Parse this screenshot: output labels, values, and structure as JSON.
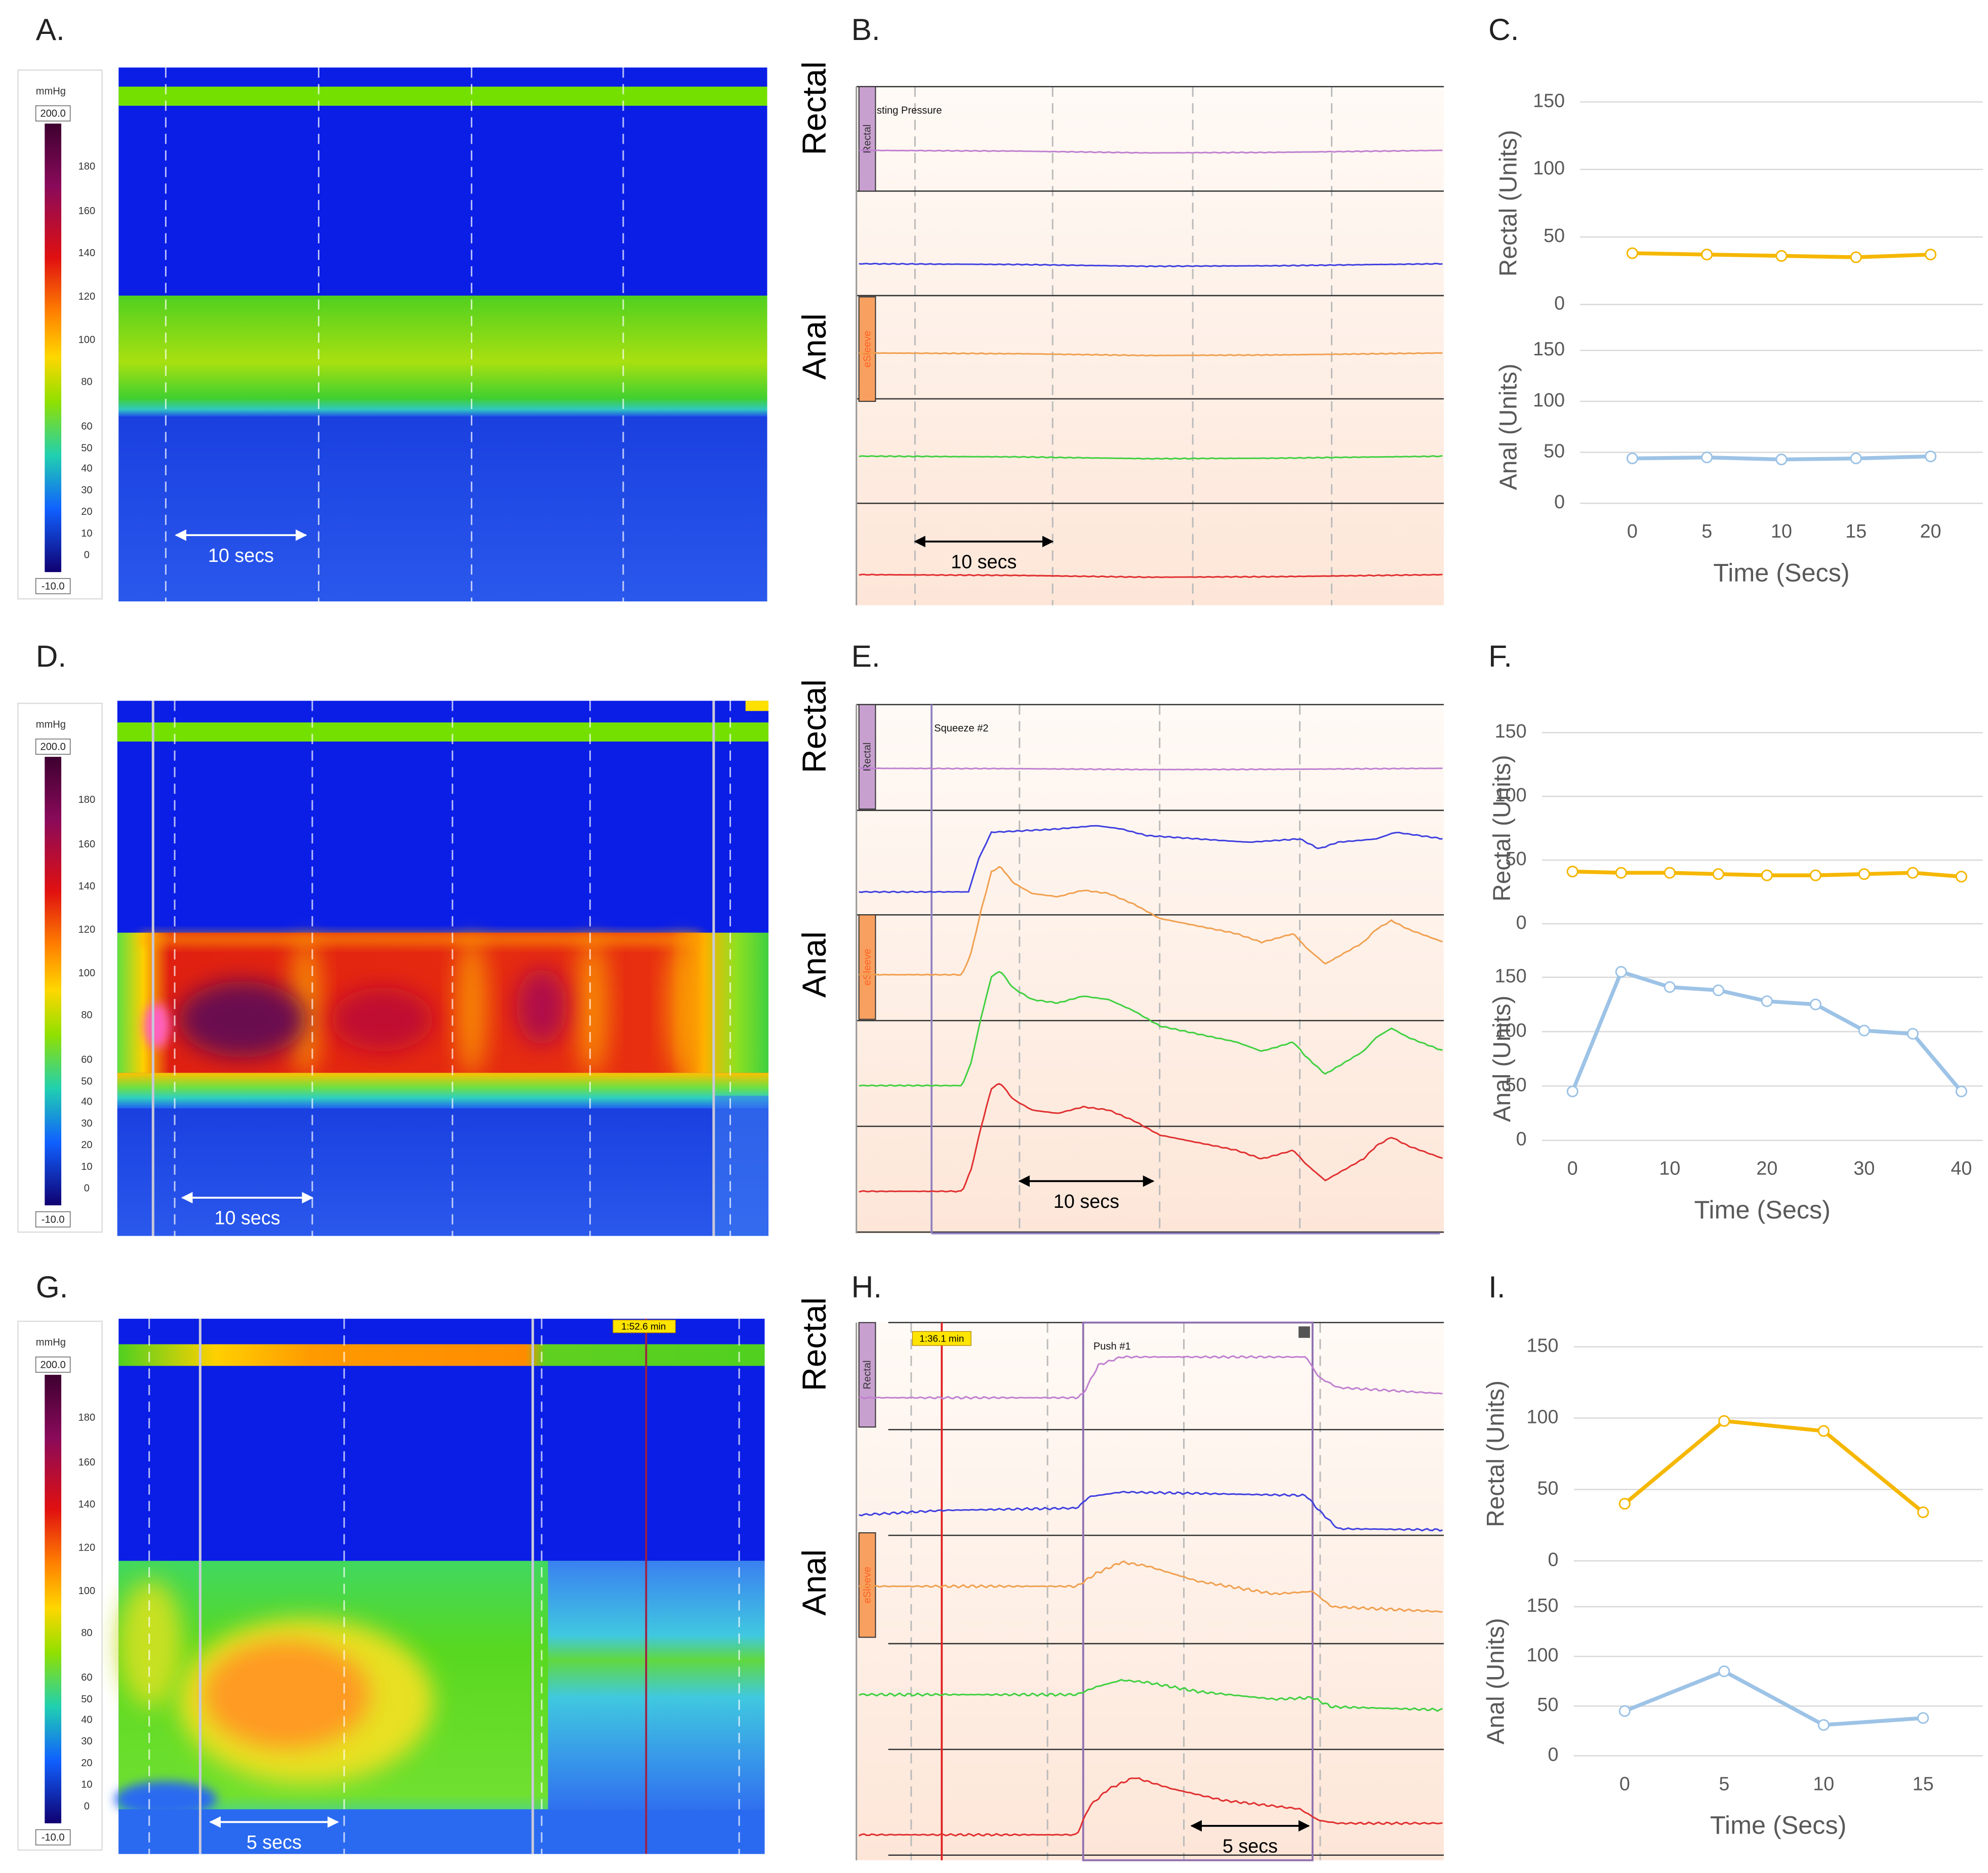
{
  "panel_labels": [
    "A.",
    "B.",
    "C.",
    "D.",
    "E.",
    "F.",
    "G.",
    "H.",
    "I."
  ],
  "heatmaps": [
    {
      "unit": "mmHg",
      "max": "200.0",
      "min": "-10.0",
      "scale": [
        "180",
        "160",
        "140",
        "120",
        "100",
        "80",
        "60",
        "50",
        "40",
        "30",
        "20",
        "10",
        "0"
      ],
      "annotation": "10 secs"
    },
    {
      "unit": "mmHg",
      "max": "200.0",
      "min": "-10.0",
      "scale": [
        "180",
        "160",
        "140",
        "120",
        "100",
        "80",
        "60",
        "50",
        "40",
        "30",
        "20",
        "10",
        "0"
      ],
      "annotation": "10 secs"
    },
    {
      "unit": "mmHg",
      "max": "200.0",
      "min": "-10.0",
      "scale": [
        "180",
        "160",
        "140",
        "120",
        "100",
        "80",
        "60",
        "50",
        "40",
        "30",
        "20",
        "10",
        "0"
      ],
      "annotation": "5 secs",
      "marker": "1:52.6 min"
    }
  ],
  "tracings": [
    {
      "rectal": "Rectal",
      "anal": "Anal",
      "channel_rectal": "Rectal",
      "channel_anal": "eSleeve",
      "event": "sting Pressure",
      "annotation": "10 secs"
    },
    {
      "rectal": "Rectal",
      "anal": "Anal",
      "channel_rectal": "Rectal",
      "channel_anal": "eSleeve",
      "event": "Squeeze #2",
      "annotation": "10 secs"
    },
    {
      "rectal": "Rectal",
      "anal": "Anal",
      "channel_rectal": "Rectal",
      "channel_anal": "eSleeve",
      "event": "Push #1",
      "annotation": "5 secs",
      "marker": "1:36.1 min"
    }
  ],
  "chart_data": [
    {
      "type": "line",
      "xlabel": "Time (Secs)",
      "x": [
        0,
        5,
        10,
        15,
        20
      ],
      "xlim": [
        -3.5,
        23.5
      ],
      "xticks": [
        0,
        5,
        10,
        15,
        20
      ],
      "grid": true,
      "subplots": [
        {
          "ylabel": "Rectal (Units)",
          "ylim": [
            0,
            150
          ],
          "yticks": [
            0,
            50,
            100,
            150
          ],
          "series": [
            {
              "color": "#f5b700",
              "values": [
                38,
                37,
                36,
                35,
                37
              ]
            }
          ]
        },
        {
          "ylabel": "Anal (Units)",
          "ylim": [
            0,
            150
          ],
          "yticks": [
            0,
            50,
            100,
            150
          ],
          "series": [
            {
              "color": "#9dc3e6",
              "values": [
                44,
                45,
                43,
                44,
                46
              ]
            }
          ]
        }
      ]
    },
    {
      "type": "line",
      "xlabel": "Time (Secs)",
      "x": [
        0,
        5,
        10,
        15,
        20,
        25,
        30,
        35,
        40
      ],
      "xlim": [
        -3.15,
        42.2
      ],
      "xticks": [
        0,
        10,
        20,
        30,
        40
      ],
      "grid": true,
      "subplots": [
        {
          "ylabel": "Rectal (Units)",
          "ylim": [
            0,
            150
          ],
          "yticks": [
            0,
            50,
            100,
            150
          ],
          "series": [
            {
              "color": "#f5b700",
              "values": [
                41,
                40,
                40,
                39,
                38,
                38,
                39,
                40,
                37
              ]
            }
          ]
        },
        {
          "ylabel": "Anal (Units)",
          "ylim": [
            0,
            150
          ],
          "yticks": [
            0,
            50,
            100,
            150
          ],
          "series": [
            {
              "color": "#9dc3e6",
              "values": [
                45,
                155,
                141,
                138,
                128,
                125,
                101,
                98,
                45
              ]
            }
          ]
        }
      ]
    },
    {
      "type": "line",
      "xlabel": "Time (Secs)",
      "x": [
        0,
        5,
        10,
        15
      ],
      "xlim": [
        -2.56,
        18
      ],
      "xticks": [
        0,
        5,
        10,
        15
      ],
      "grid": true,
      "subplots": [
        {
          "ylabel": "Rectal (Units)",
          "ylim": [
            0,
            150
          ],
          "yticks": [
            0,
            50,
            100,
            150
          ],
          "series": [
            {
              "color": "#f5b700",
              "values": [
                40,
                98,
                91,
                34
              ]
            }
          ]
        },
        {
          "ylabel": "Anal (Units)",
          "ylim": [
            0,
            150
          ],
          "yticks": [
            0,
            50,
            100,
            150
          ],
          "series": [
            {
              "color": "#9dc3e6",
              "values": [
                45,
                85,
                31,
                38
              ]
            }
          ]
        }
      ]
    }
  ]
}
